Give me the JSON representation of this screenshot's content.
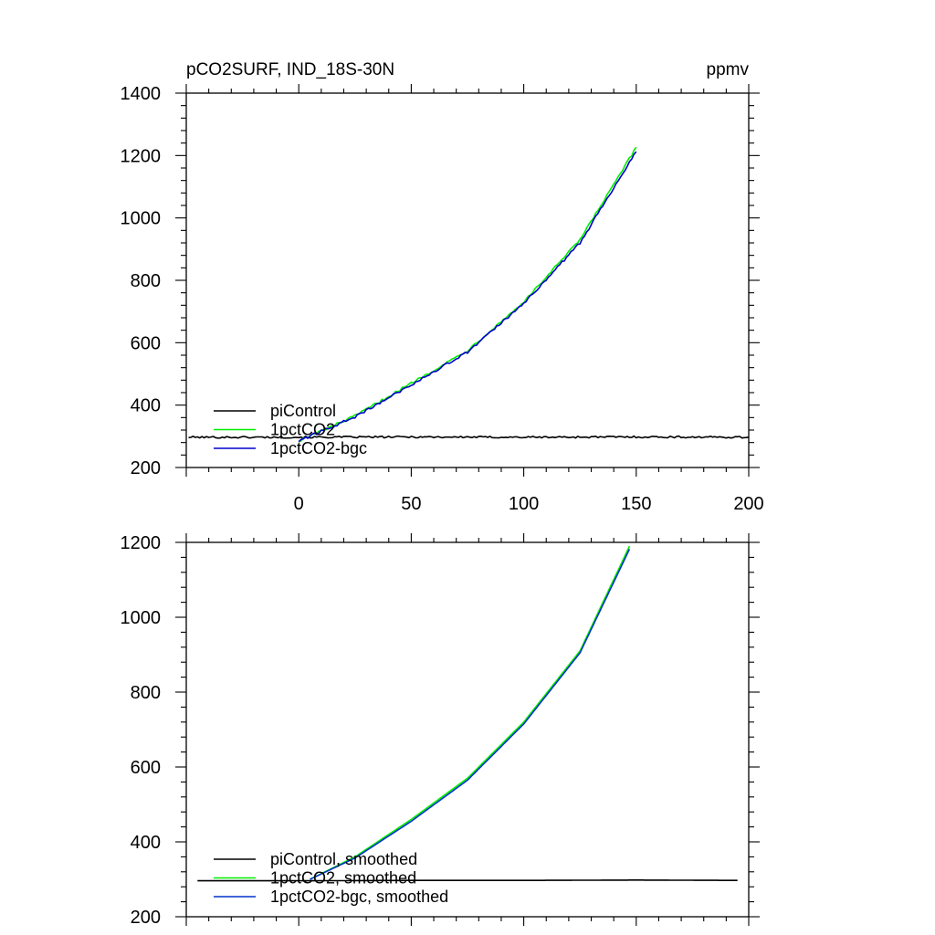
{
  "chart_data": [
    {
      "type": "line",
      "title": "pCO2SURF, IND_18S-30N",
      "units": "ppmv",
      "xlim": [
        -50,
        200
      ],
      "ylim": [
        200,
        1400
      ],
      "x_ticks": [
        0,
        50,
        100,
        150,
        200
      ],
      "x_tick_labels": [
        "0",
        "50",
        "100",
        "150",
        "200"
      ],
      "y_ticks": [
        200,
        400,
        600,
        800,
        1000,
        1200,
        1400
      ],
      "y_tick_labels": [
        "200",
        "400",
        "600",
        "800",
        "1000",
        "1200",
        "1400"
      ],
      "grid": false,
      "legend_position": "bottom-left",
      "series": [
        {
          "name": "piControl",
          "color": "#000000",
          "x_range": [
            -49,
            200
          ],
          "mean": 297,
          "values_sampled": {
            "x": [
              -49,
              0,
              50,
              100,
              150,
              200
            ],
            "y": [
              297,
              297,
              298,
              297,
              298,
              297
            ]
          },
          "noise": 3
        },
        {
          "name": "1pctCO2",
          "color": "#00ee00",
          "x_range": [
            0,
            150
          ],
          "values_sampled": {
            "x": [
              0,
              25,
              50,
              75,
              100,
              125,
              150
            ],
            "y": [
              285,
              365,
              470,
              575,
              730,
              930,
              1225
            ]
          },
          "noise": 4
        },
        {
          "name": "1pctCO2-bgc",
          "color": "#0000cc",
          "x_range": [
            0,
            150
          ],
          "values_sampled": {
            "x": [
              0,
              25,
              50,
              75,
              100,
              125,
              150
            ],
            "y": [
              285,
              362,
              465,
              570,
              725,
              920,
              1215
            ]
          },
          "noise": 4
        }
      ]
    },
    {
      "type": "line",
      "xlim": [
        -50,
        200
      ],
      "ylim": [
        200,
        1200
      ],
      "x_ticks": [
        0,
        50,
        100,
        150,
        200
      ],
      "y_ticks": [
        200,
        400,
        600,
        800,
        1000,
        1200
      ],
      "y_tick_labels": [
        "200",
        "400",
        "600",
        "800",
        "1000",
        "1200"
      ],
      "grid": false,
      "legend_position": "bottom-left",
      "series": [
        {
          "name": "piControl, smoothed",
          "color": "#000000",
          "x_range": [
            -45,
            195
          ],
          "values_sampled": {
            "x": [
              -45,
              0,
              50,
              100,
              150,
              195
            ],
            "y": [
              296,
              296,
              297,
              297,
              298,
              297
            ]
          }
        },
        {
          "name": "1pctCO2, smoothed",
          "color": "#00ee00",
          "x_range": [
            5,
            147
          ],
          "values_sampled": {
            "x": [
              5,
              25,
              50,
              75,
              100,
              125,
              147
            ],
            "y": [
              300,
              360,
              460,
              570,
              720,
              910,
              1190
            ]
          }
        },
        {
          "name": "1pctCO2-bgc, smoothed",
          "color": "#0033cc",
          "x_range": [
            5,
            147
          ],
          "values_sampled": {
            "x": [
              5,
              25,
              50,
              75,
              100,
              125,
              147
            ],
            "y": [
              300,
              357,
              455,
              565,
              715,
              905,
              1182
            ]
          }
        }
      ]
    }
  ]
}
